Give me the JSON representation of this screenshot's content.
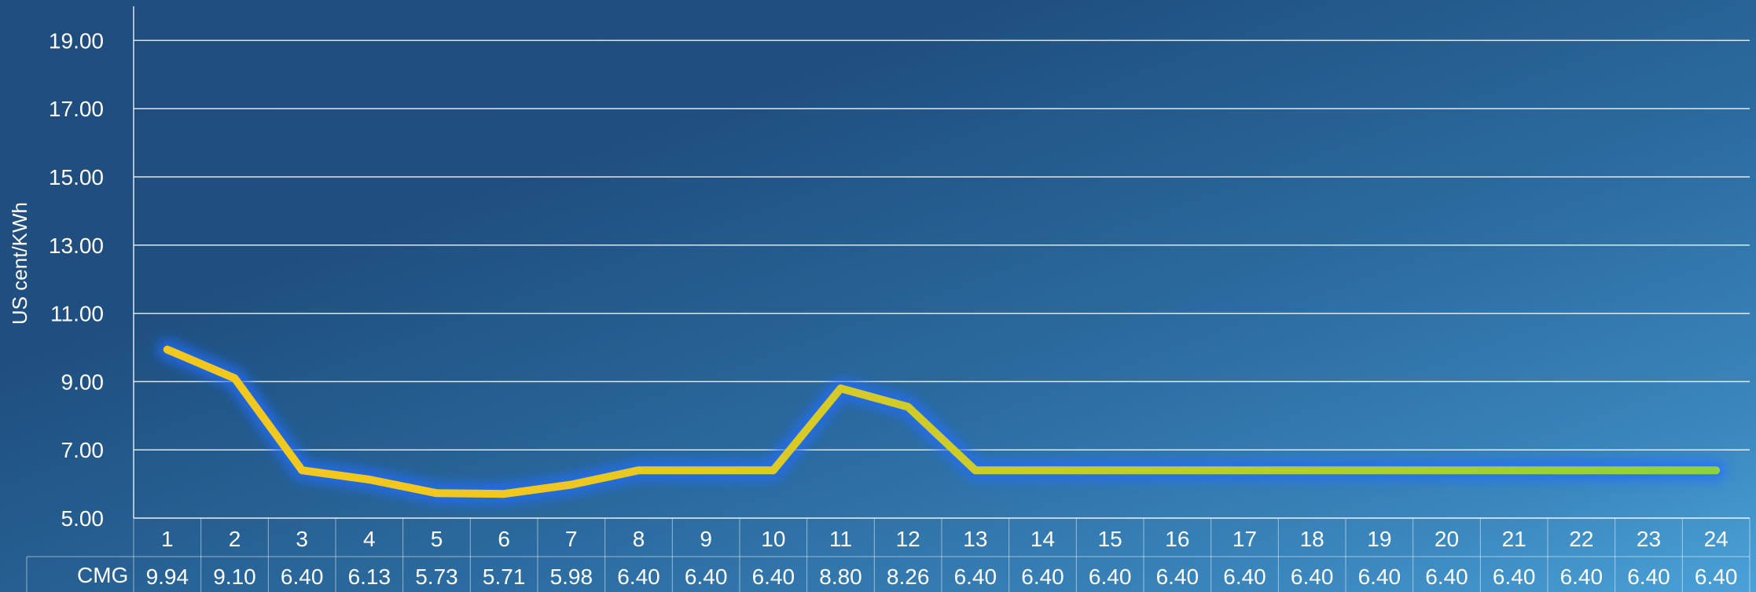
{
  "chart_data": {
    "type": "line",
    "title": "",
    "xlabel": "",
    "ylabel": "US cent/KWh",
    "x": [
      "1",
      "2",
      "3",
      "4",
      "5",
      "6",
      "7",
      "8",
      "9",
      "10",
      "11",
      "12",
      "13",
      "14",
      "15",
      "16",
      "17",
      "18",
      "19",
      "20",
      "21",
      "22",
      "23",
      "24"
    ],
    "y_ticks": [
      "5.00",
      "7.00",
      "9.00",
      "11.00",
      "13.00",
      "15.00",
      "17.00",
      "19.00"
    ],
    "ylim": [
      5,
      20
    ],
    "grid": true,
    "legend": "data-table",
    "series": [
      {
        "name": "CMG",
        "values": [
          9.94,
          9.1,
          6.4,
          6.13,
          5.73,
          5.71,
          5.98,
          6.4,
          6.4,
          6.4,
          8.8,
          8.26,
          6.4,
          6.4,
          6.4,
          6.4,
          6.4,
          6.4,
          6.4,
          6.4,
          6.4,
          6.4,
          6.4,
          6.4
        ],
        "value_labels": [
          "9.94",
          "9.10",
          "6.40",
          "6.13",
          "5.73",
          "5.71",
          "5.98",
          "6.40",
          "6.40",
          "6.40",
          "8.80",
          "8.26",
          "6.40",
          "6.40",
          "6.40",
          "6.40",
          "6.40",
          "6.40",
          "6.40",
          "6.40",
          "6.40",
          "6.40",
          "6.40",
          "6.40"
        ]
      }
    ],
    "colors": {
      "line_start": "#f2c81e",
      "line_end": "#8fd13f",
      "glow": "#1f6fff",
      "grid": "#ffffff"
    }
  }
}
